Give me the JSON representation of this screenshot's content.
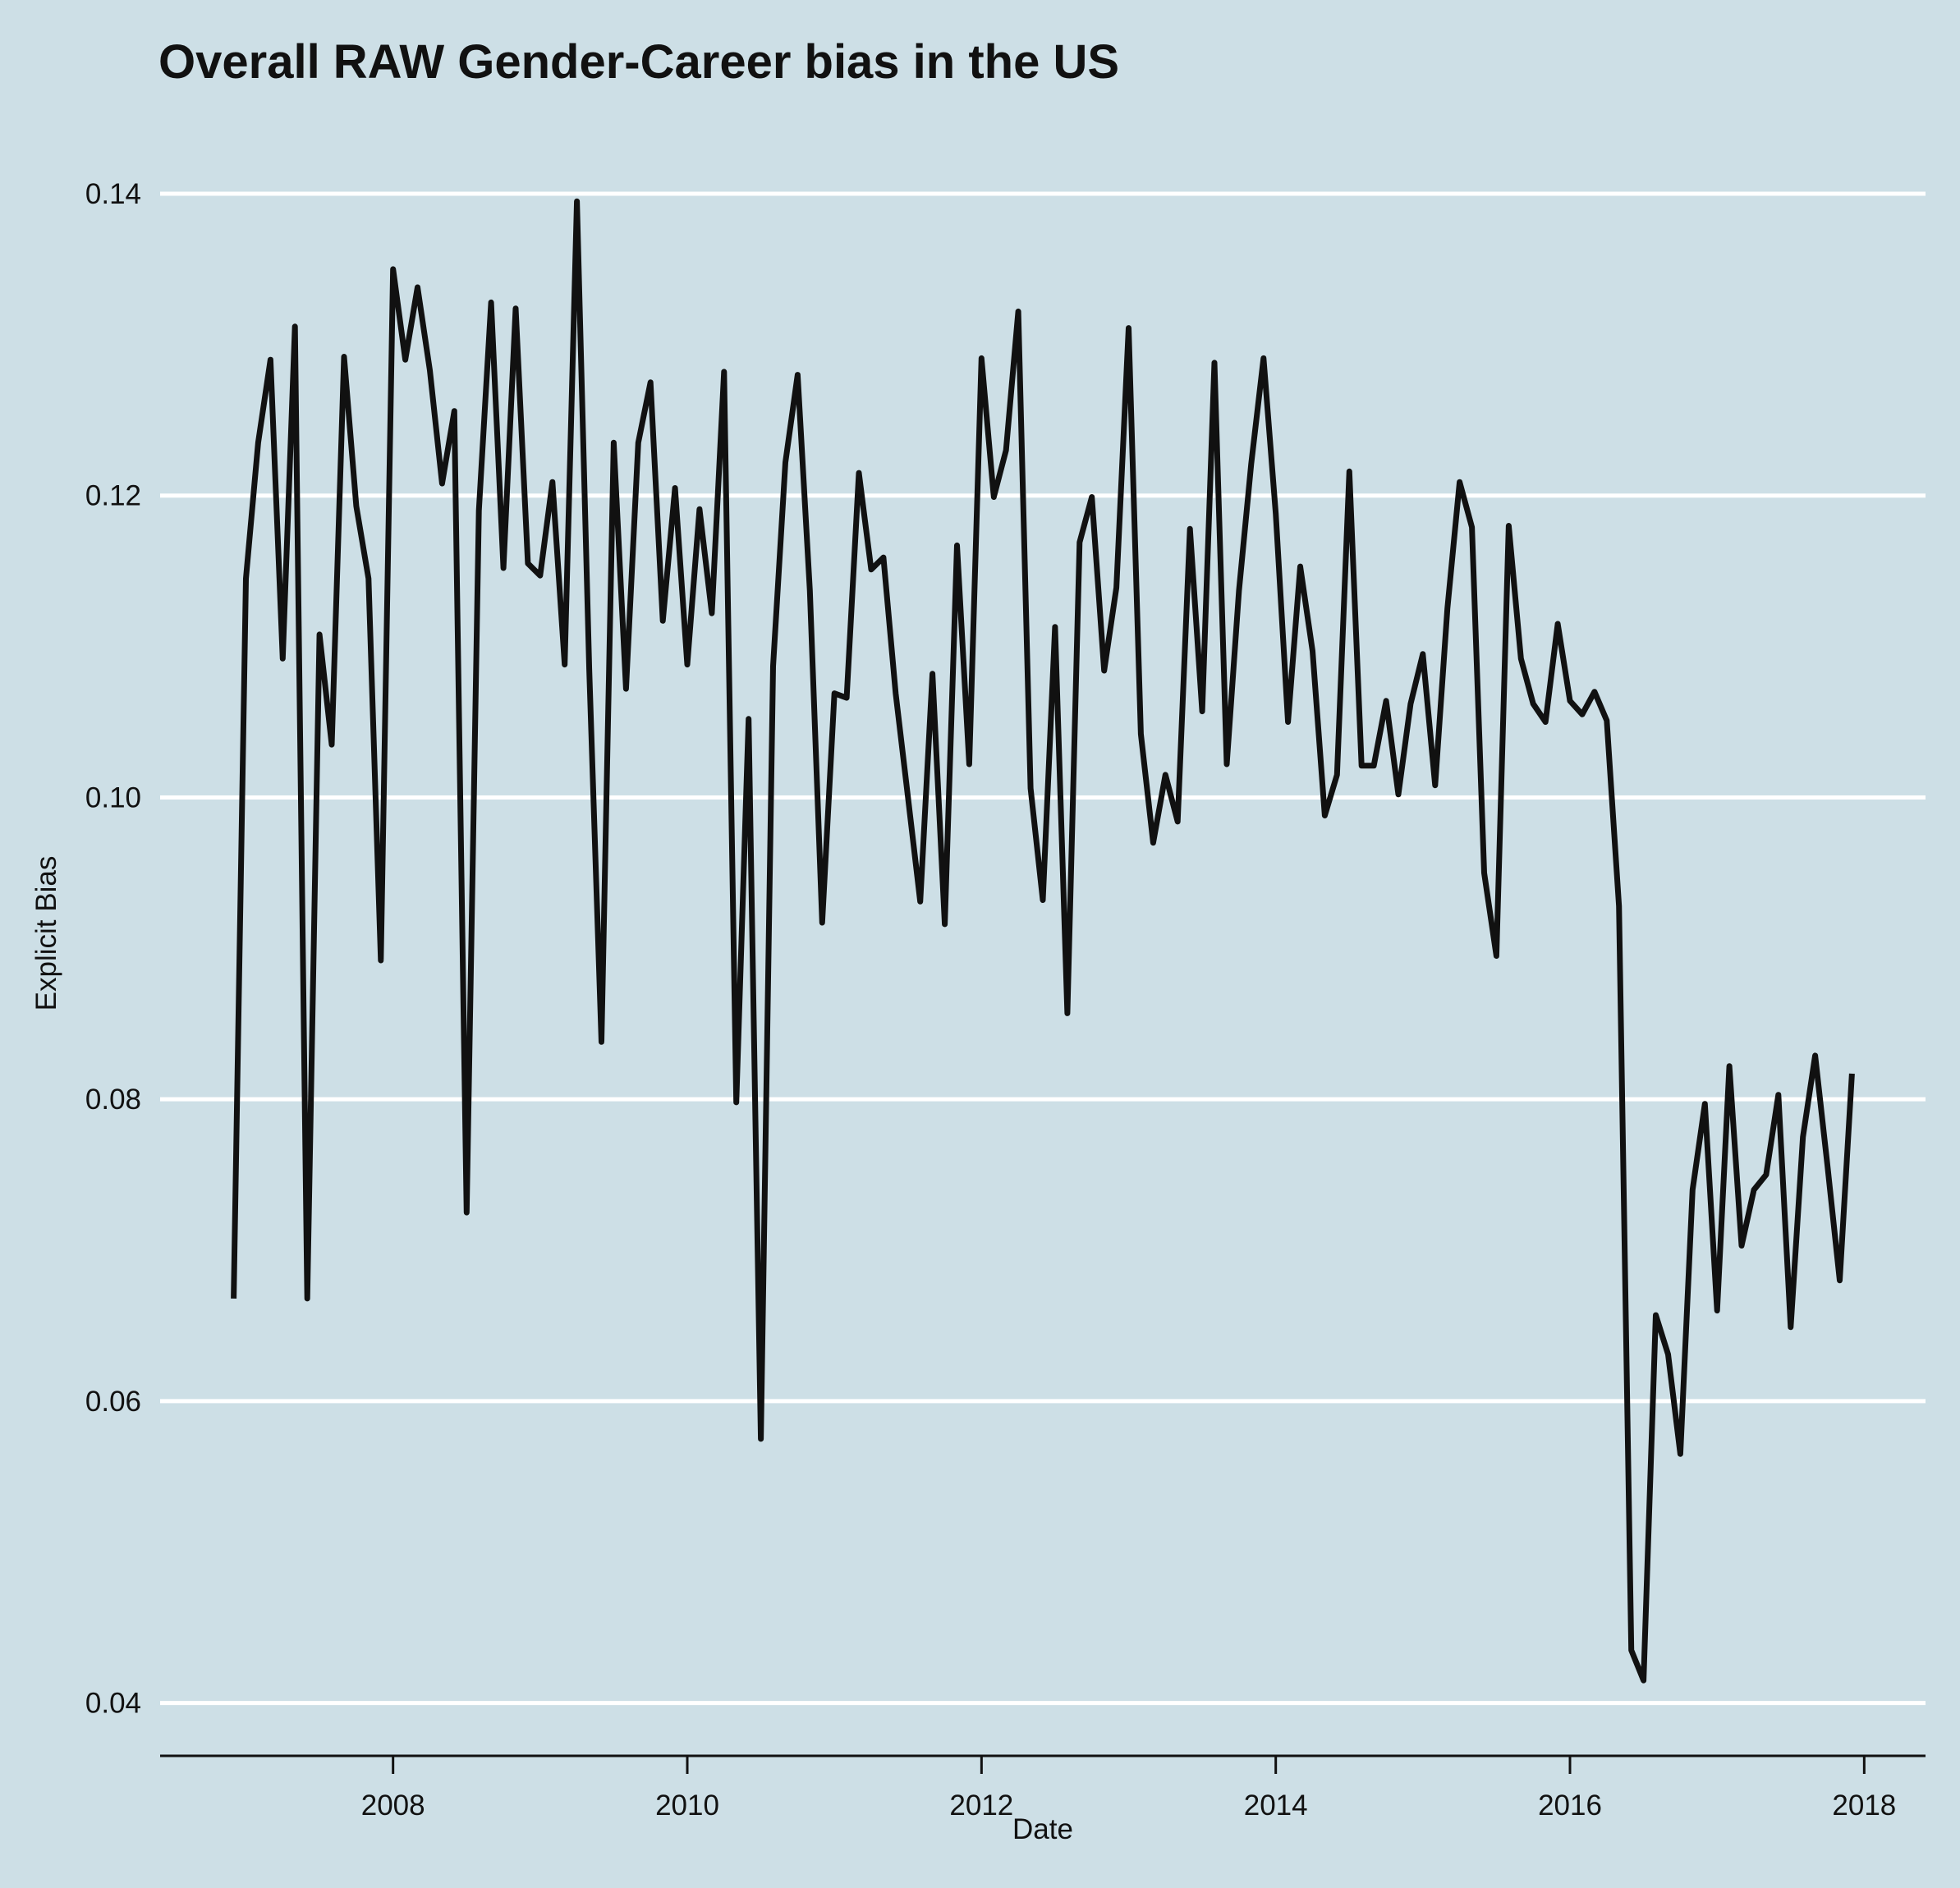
{
  "chart_data": {
    "type": "line",
    "title": "Overall RAW Gender-Career bias in the US",
    "xlabel": "Date",
    "ylabel": "Explicit Bias",
    "x_tick_labels": [
      "2008",
      "2010",
      "2012",
      "2014",
      "2016",
      "2018"
    ],
    "y_tick_labels": [
      "0.04",
      "0.06",
      "0.08",
      "0.10",
      "0.12",
      "0.14"
    ],
    "xlim": [
      "2006-06",
      "2018-06"
    ],
    "ylim": [
      0.0365,
      0.1425
    ],
    "grid": "horizontal",
    "x": [
      "2006-12",
      "2007-01",
      "2007-02",
      "2007-03",
      "2007-04",
      "2007-05",
      "2007-06",
      "2007-07",
      "2007-08",
      "2007-09",
      "2007-10",
      "2007-11",
      "2007-12",
      "2008-01",
      "2008-02",
      "2008-03",
      "2008-04",
      "2008-05",
      "2008-06",
      "2008-07",
      "2008-08",
      "2008-09",
      "2008-10",
      "2008-11",
      "2008-12",
      "2009-01",
      "2009-02",
      "2009-03",
      "2009-04",
      "2009-05",
      "2009-06",
      "2009-07",
      "2009-08",
      "2009-09",
      "2009-10",
      "2009-11",
      "2009-12",
      "2010-01",
      "2010-02",
      "2010-03",
      "2010-04",
      "2010-05",
      "2010-06",
      "2010-07",
      "2010-08",
      "2010-09",
      "2010-10",
      "2010-11",
      "2010-12",
      "2011-01",
      "2011-02",
      "2011-03",
      "2011-04",
      "2011-05",
      "2011-06",
      "2011-07",
      "2011-08",
      "2011-09",
      "2011-10",
      "2011-11",
      "2011-12",
      "2012-01",
      "2012-02",
      "2012-03",
      "2012-04",
      "2012-05",
      "2012-06",
      "2012-07",
      "2012-08",
      "2012-09",
      "2012-10",
      "2012-11",
      "2012-12",
      "2013-01",
      "2013-02",
      "2013-03",
      "2013-04",
      "2013-05",
      "2013-06",
      "2013-07",
      "2013-08",
      "2013-09",
      "2013-10",
      "2013-11",
      "2013-12",
      "2014-01",
      "2014-02",
      "2014-03",
      "2014-04",
      "2014-05",
      "2014-06",
      "2014-07",
      "2014-08",
      "2014-09",
      "2014-10",
      "2014-11",
      "2014-12",
      "2015-01",
      "2015-02",
      "2015-03",
      "2015-04",
      "2015-05",
      "2015-06",
      "2015-07",
      "2015-08",
      "2015-09",
      "2015-10",
      "2015-11",
      "2015-12",
      "2016-01",
      "2016-02",
      "2016-03",
      "2016-04",
      "2016-05",
      "2016-06",
      "2016-07",
      "2016-08",
      "2016-09",
      "2016-10",
      "2016-11",
      "2016-12",
      "2017-01",
      "2017-02",
      "2017-03",
      "2017-04",
      "2017-05",
      "2017-06",
      "2017-07",
      "2017-08",
      "2017-09",
      "2017-10",
      "2017-11",
      "2017-12"
    ],
    "series": [
      {
        "values": [
          0.0668,
          0.1145,
          0.1235,
          0.129,
          0.1092,
          0.1312,
          0.0668,
          0.1108,
          0.1035,
          0.1292,
          0.1193,
          0.1145,
          0.0892,
          0.135,
          0.129,
          0.1338,
          0.1283,
          0.1208,
          0.1256,
          0.0725,
          0.119,
          0.1328,
          0.1152,
          0.1324,
          0.1155,
          0.1147,
          0.1209,
          0.1088,
          0.1395,
          0.1085,
          0.0838,
          0.1235,
          0.1072,
          0.1235,
          0.1275,
          0.1117,
          0.1205,
          0.1088,
          0.1191,
          0.1122,
          0.1282,
          0.0798,
          0.1052,
          0.0575,
          0.1087,
          0.1222,
          0.128,
          0.1137,
          0.0917,
          0.1069,
          0.1066,
          0.1215,
          0.1151,
          0.1159,
          0.1069,
          0.1,
          0.0931,
          0.1082,
          0.0916,
          0.1167,
          0.1022,
          0.1291,
          0.1199,
          0.123,
          0.1322,
          0.1006,
          0.0932,
          0.1113,
          0.0857,
          0.1169,
          0.1199,
          0.1084,
          0.1139,
          0.1311,
          0.1042,
          0.097,
          0.1015,
          0.0984,
          0.1178,
          0.1057,
          0.1288,
          0.1022,
          0.1137,
          0.1221,
          0.1291,
          0.1188,
          0.105,
          0.1153,
          0.1097,
          0.0988,
          0.1015,
          0.1216,
          0.1021,
          0.1021,
          0.1064,
          0.1002,
          0.1062,
          0.1095,
          0.1008,
          0.1125,
          0.1209,
          0.1179,
          0.095,
          0.0895,
          0.118,
          0.1092,
          0.1062,
          0.105,
          0.1115,
          0.1064,
          0.1055,
          0.107,
          0.1051,
          0.0928,
          0.0435,
          0.0415,
          0.0657,
          0.0631,
          0.0565,
          0.074,
          0.0797,
          0.066,
          0.0822,
          0.0703,
          0.074,
          0.075,
          0.0803,
          0.0649,
          0.0775,
          0.0829,
          0.0756,
          0.068,
          0.0817
        ]
      }
    ]
  }
}
